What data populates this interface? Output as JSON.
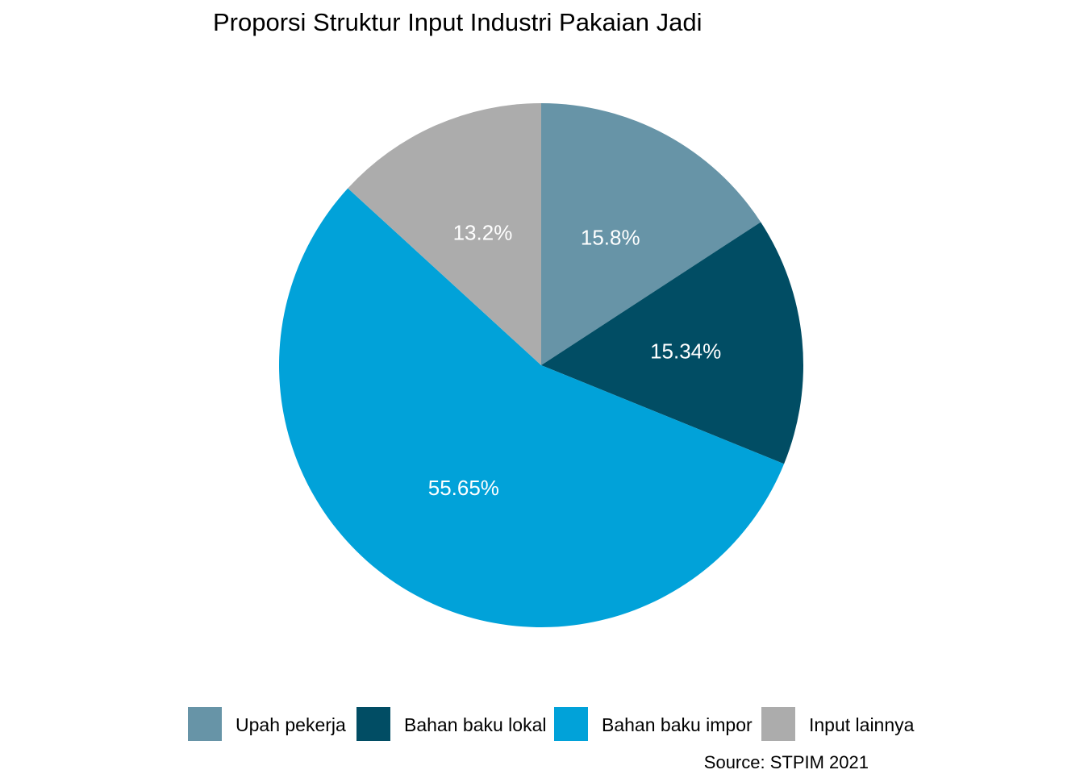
{
  "chart_data": {
    "type": "pie",
    "title": "Proporsi Struktur Input Industri Pakaian Jadi",
    "caption": "Source: STPIM 2021",
    "legend_position": "bottom",
    "slices": [
      {
        "name": "Upah pekerja",
        "value": 15.8,
        "label": "15.8%",
        "color": "#6794a7"
      },
      {
        "name": "Bahan baku lokal",
        "value": 15.34,
        "label": "15.34%",
        "color": "#014d64"
      },
      {
        "name": "Bahan baku impor",
        "value": 55.65,
        "label": "55.65%",
        "color": "#01a2d9"
      },
      {
        "name": "Input lainnya",
        "value": 13.2,
        "label": "13.2%",
        "color": "#acacac"
      }
    ]
  }
}
